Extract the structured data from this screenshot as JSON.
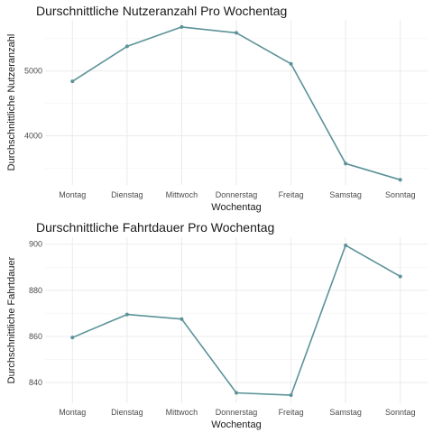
{
  "colors": {
    "series": "#5b9298"
  },
  "chart_data": [
    {
      "type": "line",
      "title": "Durschnittliche Nutzeranzahl Pro Wochentag",
      "xlabel": "Wochentag",
      "ylabel": "Durchschnittliche Nutzeranzahl",
      "categories": [
        "Montag",
        "Dienstag",
        "Mittwoch",
        "Donnerstag",
        "Freitag",
        "Samstag",
        "Sonntag"
      ],
      "values": [
        4840,
        5380,
        5680,
        5590,
        5110,
        3570,
        3320
      ],
      "yticks": [
        4000,
        5000
      ],
      "ylim": [
        3240,
        5790
      ],
      "grid": true,
      "legend": "none"
    },
    {
      "type": "line",
      "title": "Durschnittliche Fahrtdauer Pro Wochentag",
      "xlabel": "Wochentag",
      "ylabel": "Durchschnittliche Fahrtdauer",
      "categories": [
        "Montag",
        "Dienstag",
        "Mittwoch",
        "Donnerstag",
        "Freitag",
        "Samstag",
        "Sonntag"
      ],
      "values": [
        859.5,
        869.5,
        867.5,
        835.5,
        834.5,
        899.5,
        886
      ],
      "yticks": [
        840,
        860,
        880,
        900
      ],
      "ylim": [
        831,
        903
      ],
      "grid": true,
      "legend": "none"
    }
  ]
}
